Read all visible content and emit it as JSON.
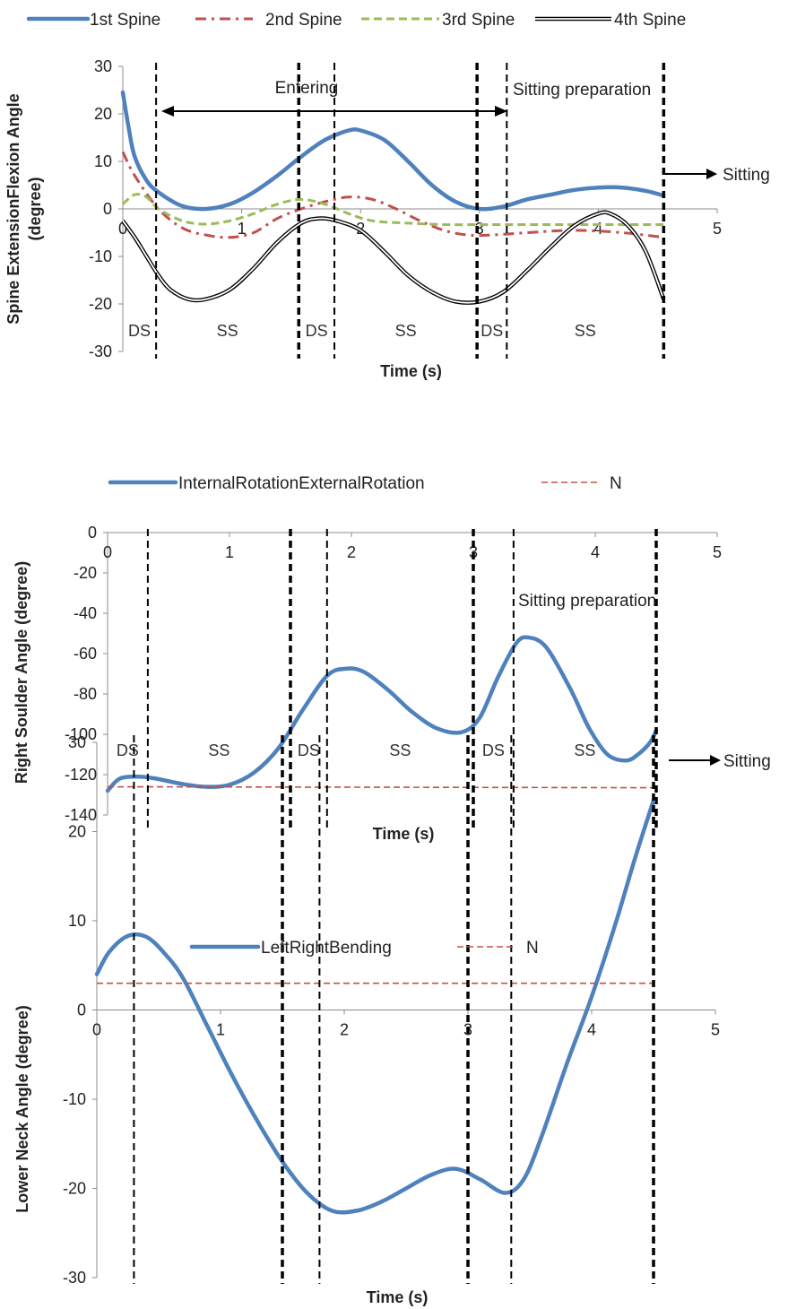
{
  "colors": {
    "blue": "#4f81bd",
    "red": "#c0504d",
    "green": "#9bbb59",
    "black": "#000000"
  },
  "chart_data": [
    {
      "type": "line",
      "xlabel": "Time (s)",
      "ylabel": "Spine ExtensionFlexion  Angle (degree)",
      "ylabel_lines": [
        "Spine ExtensionFlexion  Angle",
        "(degree)"
      ],
      "xlim": [
        0,
        5
      ],
      "ylim": [
        -30,
        30
      ],
      "xticks": [
        "0",
        "1",
        "2",
        "3",
        "4",
        "5"
      ],
      "yticks": [
        "-30",
        "-20",
        "-10",
        "0",
        "10",
        "20",
        "30"
      ],
      "grid": false,
      "legend_position": "top",
      "vlines": [
        0.28,
        1.48,
        1.78,
        2.98,
        3.23,
        4.55
      ],
      "phases": [
        "DS",
        "SS",
        "DS",
        "SS",
        "DS",
        "SS"
      ],
      "annotations": {
        "entering": "Entering",
        "preparation": "Sitting preparation",
        "sitting": "Sitting"
      },
      "series": [
        {
          "name": "1st Spine",
          "style": "solid-thick",
          "color": "#4f81bd",
          "x": [
            0,
            0.05,
            0.1,
            0.2,
            0.3,
            0.5,
            0.7,
            0.9,
            1.1,
            1.3,
            1.5,
            1.7,
            1.9,
            2.0,
            2.2,
            2.4,
            2.6,
            2.8,
            3.0,
            3.2,
            3.4,
            3.6,
            3.8,
            4.0,
            4.2,
            4.4,
            4.55
          ],
          "y": [
            24.5,
            17,
            11,
            6,
            3.5,
            0.6,
            0,
            1,
            3.5,
            7,
            11,
            14.5,
            16.5,
            16.5,
            14.5,
            10,
            5,
            1.5,
            0,
            0.5,
            2,
            3,
            4,
            4.5,
            4.5,
            3.8,
            2.8
          ]
        },
        {
          "name": "2nd Spine",
          "style": "dashdot",
          "color": "#c0504d",
          "x": [
            0,
            0.1,
            0.3,
            0.5,
            0.7,
            0.9,
            1.1,
            1.3,
            1.5,
            1.7,
            1.9,
            2.1,
            2.3,
            2.5,
            2.7,
            2.9,
            3.1,
            3.4,
            3.8,
            4.2,
            4.55
          ],
          "y": [
            12,
            7,
            0,
            -4,
            -5.5,
            -6,
            -5,
            -2,
            0,
            1.5,
            2.5,
            2,
            0,
            -2.5,
            -4.5,
            -5.5,
            -5.5,
            -5,
            -4.5,
            -5,
            -6
          ]
        },
        {
          "name": "3rd Spine",
          "style": "dashed",
          "color": "#9bbb59",
          "x": [
            0,
            0.1,
            0.2,
            0.3,
            0.5,
            0.7,
            0.9,
            1.1,
            1.3,
            1.5,
            1.7,
            1.9,
            2.1,
            2.4,
            2.7,
            3.0,
            3.3,
            3.6,
            4.0,
            4.3,
            4.55
          ],
          "y": [
            1,
            3,
            2.5,
            0,
            -2.5,
            -3.2,
            -2.5,
            -1,
            1,
            2,
            1,
            -1,
            -2.5,
            -3,
            -3.3,
            -3.3,
            -3.3,
            -3.3,
            -3.3,
            -3.3,
            -3.3
          ]
        },
        {
          "name": "4th Spine",
          "style": "double",
          "color": "#000000",
          "x": [
            0,
            0.1,
            0.2,
            0.3,
            0.4,
            0.55,
            0.7,
            0.9,
            1.1,
            1.3,
            1.5,
            1.65,
            1.8,
            2.0,
            2.2,
            2.4,
            2.6,
            2.8,
            3.0,
            3.2,
            3.4,
            3.6,
            3.8,
            4.0,
            4.1,
            4.25,
            4.4,
            4.55
          ],
          "y": [
            -2.5,
            -6,
            -10,
            -14,
            -17,
            -19,
            -19,
            -17,
            -12.5,
            -7,
            -3,
            -2,
            -2.5,
            -4.5,
            -9,
            -14,
            -17.5,
            -19.5,
            -19.5,
            -17.5,
            -13,
            -8,
            -3.5,
            -1,
            -1,
            -3.5,
            -9,
            -19
          ]
        }
      ]
    },
    {
      "type": "line",
      "xlabel": "Time (s)",
      "ylabel": "Right Soulder Angle (degree)",
      "ylabel_lines": [
        "Right Soulder Angle (degree)"
      ],
      "xlim": [
        0,
        5
      ],
      "ylim": [
        -140,
        0
      ],
      "xticks": [
        "0",
        "1",
        "2",
        "3",
        "4",
        "5"
      ],
      "yticks": [
        "-140",
        "-120",
        "-100",
        "-80",
        "-60",
        "-40",
        "-20",
        "0"
      ],
      "grid": false,
      "legend_position": "top",
      "vlines": [
        0.33,
        1.5,
        1.8,
        3.0,
        3.33,
        4.5
      ],
      "phases": [
        "DS",
        "SS",
        "DS",
        "SS",
        "DS",
        "SS"
      ],
      "annotations": {
        "preparation": "Sitting preparation",
        "sitting": "Sitting"
      },
      "series": [
        {
          "name": "InternalRotationExternalRotation",
          "style": "solid-thick",
          "color": "#4f81bd",
          "x": [
            0,
            0.1,
            0.25,
            0.4,
            0.6,
            0.8,
            1.0,
            1.2,
            1.4,
            1.6,
            1.8,
            1.95,
            2.1,
            2.3,
            2.5,
            2.7,
            2.9,
            3.05,
            3.2,
            3.35,
            3.45,
            3.6,
            3.8,
            3.95,
            4.1,
            4.25,
            4.35,
            4.45,
            4.5
          ],
          "y": [
            -128,
            -122,
            -121,
            -122,
            -124.5,
            -126,
            -125,
            -119,
            -107,
            -88,
            -71,
            -67.5,
            -69,
            -78,
            -89,
            -97,
            -99,
            -92,
            -72,
            -55,
            -52,
            -57,
            -78,
            -97,
            -110,
            -113,
            -110,
            -104,
            -98
          ]
        },
        {
          "name": "N",
          "style": "dashed-thin",
          "color": "#c0504d",
          "x": [
            0,
            4.5
          ],
          "y": [
            -126,
            -126.5
          ]
        }
      ]
    },
    {
      "type": "line",
      "xlabel": "Time (s)",
      "ylabel": "Lower Neck Angle (degree)",
      "ylabel_lines": [
        "Lower Neck Angle (degree)"
      ],
      "xlim": [
        0,
        5
      ],
      "ylim": [
        -30,
        30
      ],
      "xticks": [
        "0",
        "1",
        "2",
        "3",
        "4",
        "5"
      ],
      "yticks": [
        "-30",
        "-20",
        "-10",
        "0",
        "10",
        "20",
        "30"
      ],
      "grid": false,
      "legend_position": "top",
      "vlines": [
        0.3,
        1.5,
        1.8,
        3.0,
        3.35,
        4.5
      ],
      "phases": [],
      "annotations": {},
      "series": [
        {
          "name": "LeftRightBending",
          "style": "solid-thick",
          "color": "#4f81bd",
          "x": [
            0,
            0.1,
            0.25,
            0.4,
            0.55,
            0.7,
            0.9,
            1.1,
            1.3,
            1.5,
            1.7,
            1.9,
            2.1,
            2.3,
            2.5,
            2.7,
            2.9,
            3.1,
            3.3,
            3.45,
            3.6,
            3.8,
            4.0,
            4.2,
            4.35,
            4.5
          ],
          "y": [
            4,
            6.5,
            8.3,
            8.2,
            6.3,
            3.5,
            -2,
            -7.5,
            -12.5,
            -17,
            -20.5,
            -22.5,
            -22.5,
            -21.5,
            -20,
            -18.5,
            -17.8,
            -19,
            -20.5,
            -19,
            -14,
            -6,
            1.5,
            10,
            17,
            23.5
          ]
        },
        {
          "name": "N",
          "style": "dashed-thin",
          "color": "#c0504d",
          "x": [
            0,
            4.5
          ],
          "y": [
            3,
            3
          ]
        }
      ]
    }
  ]
}
